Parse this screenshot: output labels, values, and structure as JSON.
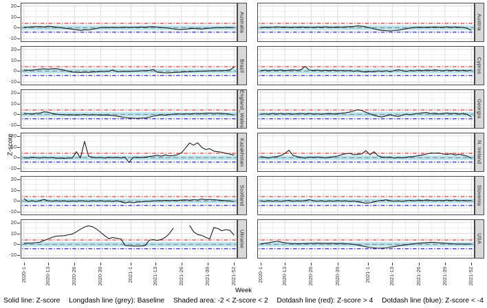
{
  "figure": {
    "ylab": "Z-score",
    "xlab": "Week",
    "colors": {
      "band": "#b5e1ed",
      "baseline": "#8c8c8c",
      "upper_threshold": "#e8231c",
      "lower_threshold": "#2125dc",
      "z_line": "#1a1a1a",
      "grid_major": "#dcdcdc",
      "grid_minor": "#efefef",
      "panel_border": "#474747",
      "strip_bg": "#d8d8d8"
    }
  },
  "caption": {
    "items": [
      "Solid line: Z-score",
      "Longdash line (grey): Baseline",
      "Shaded area: -2 < Z-score < 2",
      "Dotdash line (red): Z-score > 4",
      "Dotdash line (blue): Z-score < -4"
    ]
  },
  "chart_data": {
    "type": "line",
    "title": "",
    "facet_layout": "6 rows x 2 columns, country strip on right of each panel",
    "x": {
      "label": "Week",
      "ticks": [
        "2020-1",
        "2020-13",
        "2020-26",
        "2020-39",
        "2021-1",
        "2021-13",
        "2021-26",
        "2021-39",
        "2021-52"
      ],
      "tick_week_index": [
        0,
        12,
        25,
        38,
        53,
        65,
        78,
        91,
        104
      ],
      "weeks_span": "2020-W01 to 2021-W52",
      "x_week_step_per_point": 2
    },
    "y": {
      "label": "Z-score",
      "ticks": [
        20,
        10,
        0,
        -10
      ],
      "minor_ticks": [
        15,
        5,
        -5
      ],
      "range": [
        -13,
        23
      ]
    },
    "reference": {
      "baseline": 0,
      "shaded_band": [
        -2,
        2
      ],
      "upper_threshold": 4,
      "lower_threshold": -4
    },
    "series": [
      {
        "name": "Australia",
        "values": [
          0.5,
          0.6,
          0.8,
          1.0,
          1.2,
          0.7,
          1.4,
          1.0,
          0.5,
          0.2,
          -0.3,
          -0.8,
          -1.2,
          -1.8,
          -2.4,
          -1.8,
          -2.0,
          -1.2,
          -0.6,
          0.2,
          0.3,
          0.2,
          0.4,
          0.2,
          0.3,
          0.5,
          0.3,
          0.6,
          0.4,
          0.7,
          0.5,
          0.8,
          1.0,
          0.6,
          0.3,
          0.0,
          -0.4,
          -1.0,
          -1.5,
          -1.7,
          -1.3,
          -0.8,
          -0.5,
          -0.9,
          -1.1,
          -0.7,
          -0.3,
          0.0,
          0.2,
          0.1,
          0.3,
          0.2,
          0.3
        ]
      },
      {
        "name": "Austria",
        "values": [
          0.3,
          0.5,
          0.4,
          0.6,
          0.9,
          0.5,
          0.7,
          0.4,
          0.6,
          0.5,
          0.7,
          0.5,
          0.6,
          0.4,
          0.7,
          0.5,
          0.8,
          0.6,
          0.5,
          0.7,
          0.6,
          0.8,
          1.0,
          1.3,
          1.8,
          1.4,
          0.8,
          0.0,
          -1.0,
          -1.8,
          -2.4,
          -2.7,
          -2.8,
          -2.6,
          -2.2,
          -1.5,
          -0.8,
          -0.2,
          0.3,
          0.5,
          0.4,
          0.6,
          0.5,
          0.7,
          0.5,
          0.6,
          0.8,
          0.6,
          0.7,
          0.5,
          0.3,
          -0.5,
          -2.3
        ]
      },
      {
        "name": "Brazil",
        "values": [
          1.0,
          0.7,
          0.9,
          1.3,
          1.8,
          2.1,
          1.7,
          2.2,
          2.3,
          1.6,
          0.8,
          -0.2,
          -0.8,
          -1.1,
          -1.2,
          -1.0,
          -1.1,
          -0.8,
          -0.6,
          -0.4,
          -0.3,
          -0.2,
          1.0,
          -0.5,
          -0.4,
          -0.2,
          -0.3,
          -0.1,
          0.0,
          0.2,
          0.4,
          0.5,
          1.5,
          -1.0,
          -1.4,
          -1.6,
          -1.5,
          -1.3,
          -1.1,
          -0.9,
          -0.7,
          -0.5,
          -0.4,
          -0.2,
          -0.1,
          0.1,
          0.2,
          0.3,
          0.3,
          0.4,
          0.5,
          1.0,
          3.8
        ]
      },
      {
        "name": "Cyprus",
        "values": [
          0.4,
          0.8,
          0.3,
          0.9,
          0.5,
          1.0,
          0.4,
          0.7,
          1.1,
          0.6,
          1.3,
          4.3,
          0.9,
          0.5,
          0.8,
          0.3,
          0.7,
          0.4,
          0.8,
          0.3,
          0.6,
          0.2,
          0.5,
          -0.2,
          0.4,
          -0.5,
          -0.9,
          -0.3,
          -0.7,
          0.2,
          -0.4,
          0.3,
          -0.6,
          0.5,
          1.2,
          0.4,
          -0.3,
          0.6,
          0.2,
          0.8,
          0.3,
          1.0,
          0.5,
          1.1,
          0.6,
          0.2,
          0.9,
          0.4,
          0.8,
          0.3,
          0.7,
          0.2,
          0.8
        ]
      },
      {
        "name": "England_Wales",
        "values": [
          1.0,
          0.6,
          0.4,
          0.8,
          1.2,
          2.4,
          2.0,
          0.8,
          0.2,
          -0.2,
          -0.3,
          -0.5,
          -0.3,
          -0.6,
          -0.4,
          -0.2,
          -0.5,
          -0.3,
          -0.4,
          -0.6,
          -0.5,
          -0.7,
          -1.0,
          -1.5,
          -2.2,
          -2.9,
          -3.3,
          -3.4,
          -3.5,
          -3.4,
          -3.3,
          -2.6,
          -1.6,
          -0.8,
          -0.4,
          -0.6,
          -0.2,
          0.2,
          0.5,
          0.3,
          0.6,
          0.4,
          0.7,
          0.9,
          0.7,
          1.0,
          1.2,
          0.9,
          1.1,
          0.8,
          0.5,
          0.2,
          -0.6
        ]
      },
      {
        "name": "Georgia",
        "values": [
          0.3,
          0.6,
          0.2,
          0.8,
          0.4,
          0.9,
          0.3,
          0.7,
          0.2,
          0.6,
          0.9,
          0.4,
          0.8,
          0.3,
          0.6,
          0.2,
          0.5,
          0.8,
          0.4,
          0.7,
          1.0,
          1.5,
          2.2,
          3.2,
          4.3,
          3.6,
          2.0,
          0.5,
          -0.8,
          -1.8,
          -2.3,
          -1.2,
          -0.3,
          -1.4,
          -1.8,
          -0.6,
          0.3,
          -0.4,
          0.5,
          0.9,
          1.4,
          1.8,
          0.6,
          1.1,
          0.4,
          0.9,
          1.3,
          0.7,
          1.0,
          0.4,
          0.8,
          0.1,
          -2.4
        ]
      },
      {
        "name": "Kazakhstan",
        "values": [
          0.0,
          -0.3,
          0.4,
          0.1,
          -0.4,
          0.3,
          -0.2,
          0.2,
          -0.5,
          -0.3,
          -0.6,
          -0.2,
          -0.4,
          5.5,
          -0.2,
          15.0,
          1.5,
          0.3,
          -0.1,
          0.2,
          -0.3,
          0.4,
          0.0,
          0.3,
          -0.2,
          0.5,
          -4.3,
          0.2,
          0.4,
          0.1,
          0.5,
          1.0,
          1.6,
          2.2,
          1.4,
          2.6,
          1.8,
          2.0,
          2.8,
          4.5,
          9.0,
          13.5,
          11.5,
          13.8,
          9.5,
          7.5,
          8.3,
          6.0,
          5.5,
          5.0,
          4.0,
          3.3,
          2.5
        ]
      },
      {
        "name": "N. Ireland",
        "values": [
          1.0,
          0.3,
          -0.3,
          0.5,
          1.0,
          2.0,
          4.0,
          6.8,
          2.2,
          1.0,
          0.3,
          -0.3,
          0.5,
          0.2,
          0.6,
          0.3,
          -0.2,
          0.4,
          0.8,
          1.5,
          2.8,
          3.6,
          4.0,
          2.8,
          3.2,
          3.5,
          6.5,
          2.8,
          5.5,
          1.8,
          0.5,
          0.2,
          0.6,
          -0.4,
          0.2,
          -0.2,
          0.4,
          0.8,
          1.2,
          2.0,
          2.6,
          3.4,
          4.3,
          4.1,
          4.4,
          3.4,
          3.0,
          3.6,
          2.6,
          3.2,
          2.4,
          1.4,
          -0.6
        ]
      },
      {
        "name": "Scotland",
        "values": [
          2.3,
          -0.4,
          0.2,
          -0.3,
          0.4,
          1.4,
          0.2,
          -0.2,
          0.3,
          -0.1,
          0.2,
          -0.3,
          0.1,
          -0.2,
          0.3,
          0.0,
          -0.2,
          0.2,
          -0.1,
          0.3,
          -0.2,
          0.1,
          -0.3,
          0.2,
          -0.5,
          -1.8,
          -1.0,
          -1.6,
          -1.0,
          -0.7,
          -0.4,
          -0.2,
          0.1,
          0.3,
          0.2,
          0.5,
          0.3,
          0.6,
          0.4,
          0.8,
          1.0,
          0.7,
          1.2,
          0.9,
          1.9,
          1.1,
          1.5,
          1.2,
          0.8,
          0.5,
          0.3,
          0.1,
          -0.4
        ]
      },
      {
        "name": "Slovenia",
        "values": [
          0.2,
          -0.3,
          0.4,
          -0.2,
          0.3,
          -0.4,
          0.2,
          0.5,
          -0.2,
          0.3,
          -0.1,
          0.4,
          1.2,
          0.3,
          -0.2,
          0.3,
          -0.3,
          0.2,
          -0.2,
          0.4,
          -0.1,
          0.2,
          -0.3,
          0.1,
          -0.6,
          -1.4,
          -2.0,
          -1.6,
          -0.8,
          0.2,
          0.6,
          1.0,
          0.3,
          -0.2,
          0.2,
          -0.3,
          0.3,
          0.6,
          0.2,
          0.8,
          0.4,
          1.0,
          0.5,
          0.2,
          0.6,
          0.3,
          0.8,
          0.4,
          0.9,
          0.3,
          0.6,
          0.2,
          0.5
        ]
      },
      {
        "name": "Ukraine",
        "values": [
          1.0,
          1.0,
          1.2,
          1.5,
          2.0,
          3.5,
          5.0,
          6.5,
          7.5,
          7.8,
          8.0,
          8.8,
          9.5,
          11.5,
          14.0,
          16.0,
          17.0,
          16.2,
          14.0,
          11.0,
          8.0,
          5.2,
          6.3,
          5.5,
          5.0,
          -0.8,
          -1.3,
          -1.5,
          -1.6,
          -1.5,
          -1.2,
          3.8,
          4.4,
          3.6,
          4.5,
          6.5,
          10.0,
          15.0,
          null,
          null,
          null,
          17.5,
          11.5,
          9.0,
          8.3,
          6.3,
          5.0,
          15.5,
          14.5,
          12.5,
          13.5,
          12.8,
          8.5
        ]
      },
      {
        "name": "USA",
        "values": [
          0.4,
          0.8,
          1.4,
          2.2,
          2.8,
          2.2,
          1.4,
          0.9,
          0.6,
          0.5,
          0.6,
          0.7,
          0.8,
          0.9,
          1.0,
          0.9,
          0.8,
          0.9,
          0.8,
          0.7,
          0.8,
          0.6,
          0.4,
          0.0,
          -0.6,
          -1.4,
          -2.2,
          -2.9,
          -3.3,
          -3.5,
          -3.4,
          -3.2,
          -2.6,
          -2.0,
          -1.4,
          -0.8,
          -0.3,
          0.2,
          0.6,
          1.0,
          1.3,
          1.6,
          1.9,
          1.7,
          1.4,
          1.1,
          0.8,
          0.6,
          0.4,
          0.3,
          0.2,
          0.2,
          0.3
        ]
      }
    ]
  }
}
